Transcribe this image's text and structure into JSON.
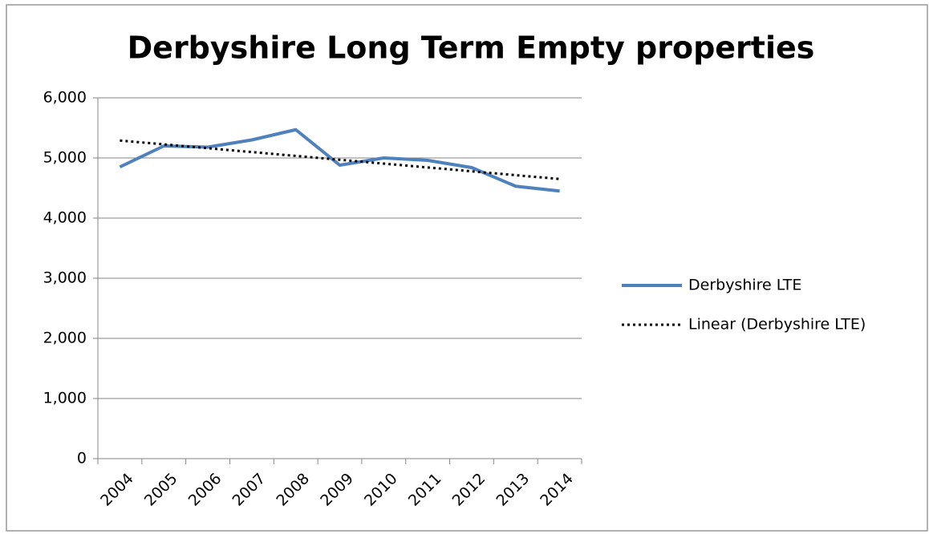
{
  "chart_data": {
    "type": "line",
    "title": "Derbyshire Long Term Empty properties",
    "categories": [
      "2004",
      "2005",
      "2006",
      "2007",
      "2008",
      "2009",
      "2010",
      "2011",
      "2012",
      "2013",
      "2014"
    ],
    "series": [
      {
        "name": "Derbyshire LTE",
        "color": "#4f81bd",
        "dash": "solid",
        "values": [
          4850,
          5200,
          5180,
          5300,
          5470,
          4880,
          5000,
          4960,
          4840,
          4530,
          4450
        ]
      },
      {
        "name": "Linear (Derbyshire LTE)",
        "color": "#000000",
        "dash": "dotted",
        "values": [
          5290,
          5226,
          5162,
          5098,
          5034,
          4970,
          4906,
          4842,
          4778,
          4714,
          4650
        ]
      }
    ],
    "ylim": [
      0,
      6000
    ],
    "yticks": [
      0,
      {
        "value": 1000,
        "label": "1,000"
      },
      {
        "value": 2000,
        "label": "2,000"
      },
      {
        "value": 3000,
        "label": "3,000"
      },
      {
        "value": 4000,
        "label": "4,000"
      },
      {
        "value": 5000,
        "label": "5,000"
      },
      {
        "value": 6000,
        "label": "6,000"
      }
    ],
    "grid": true,
    "legend": "right"
  }
}
